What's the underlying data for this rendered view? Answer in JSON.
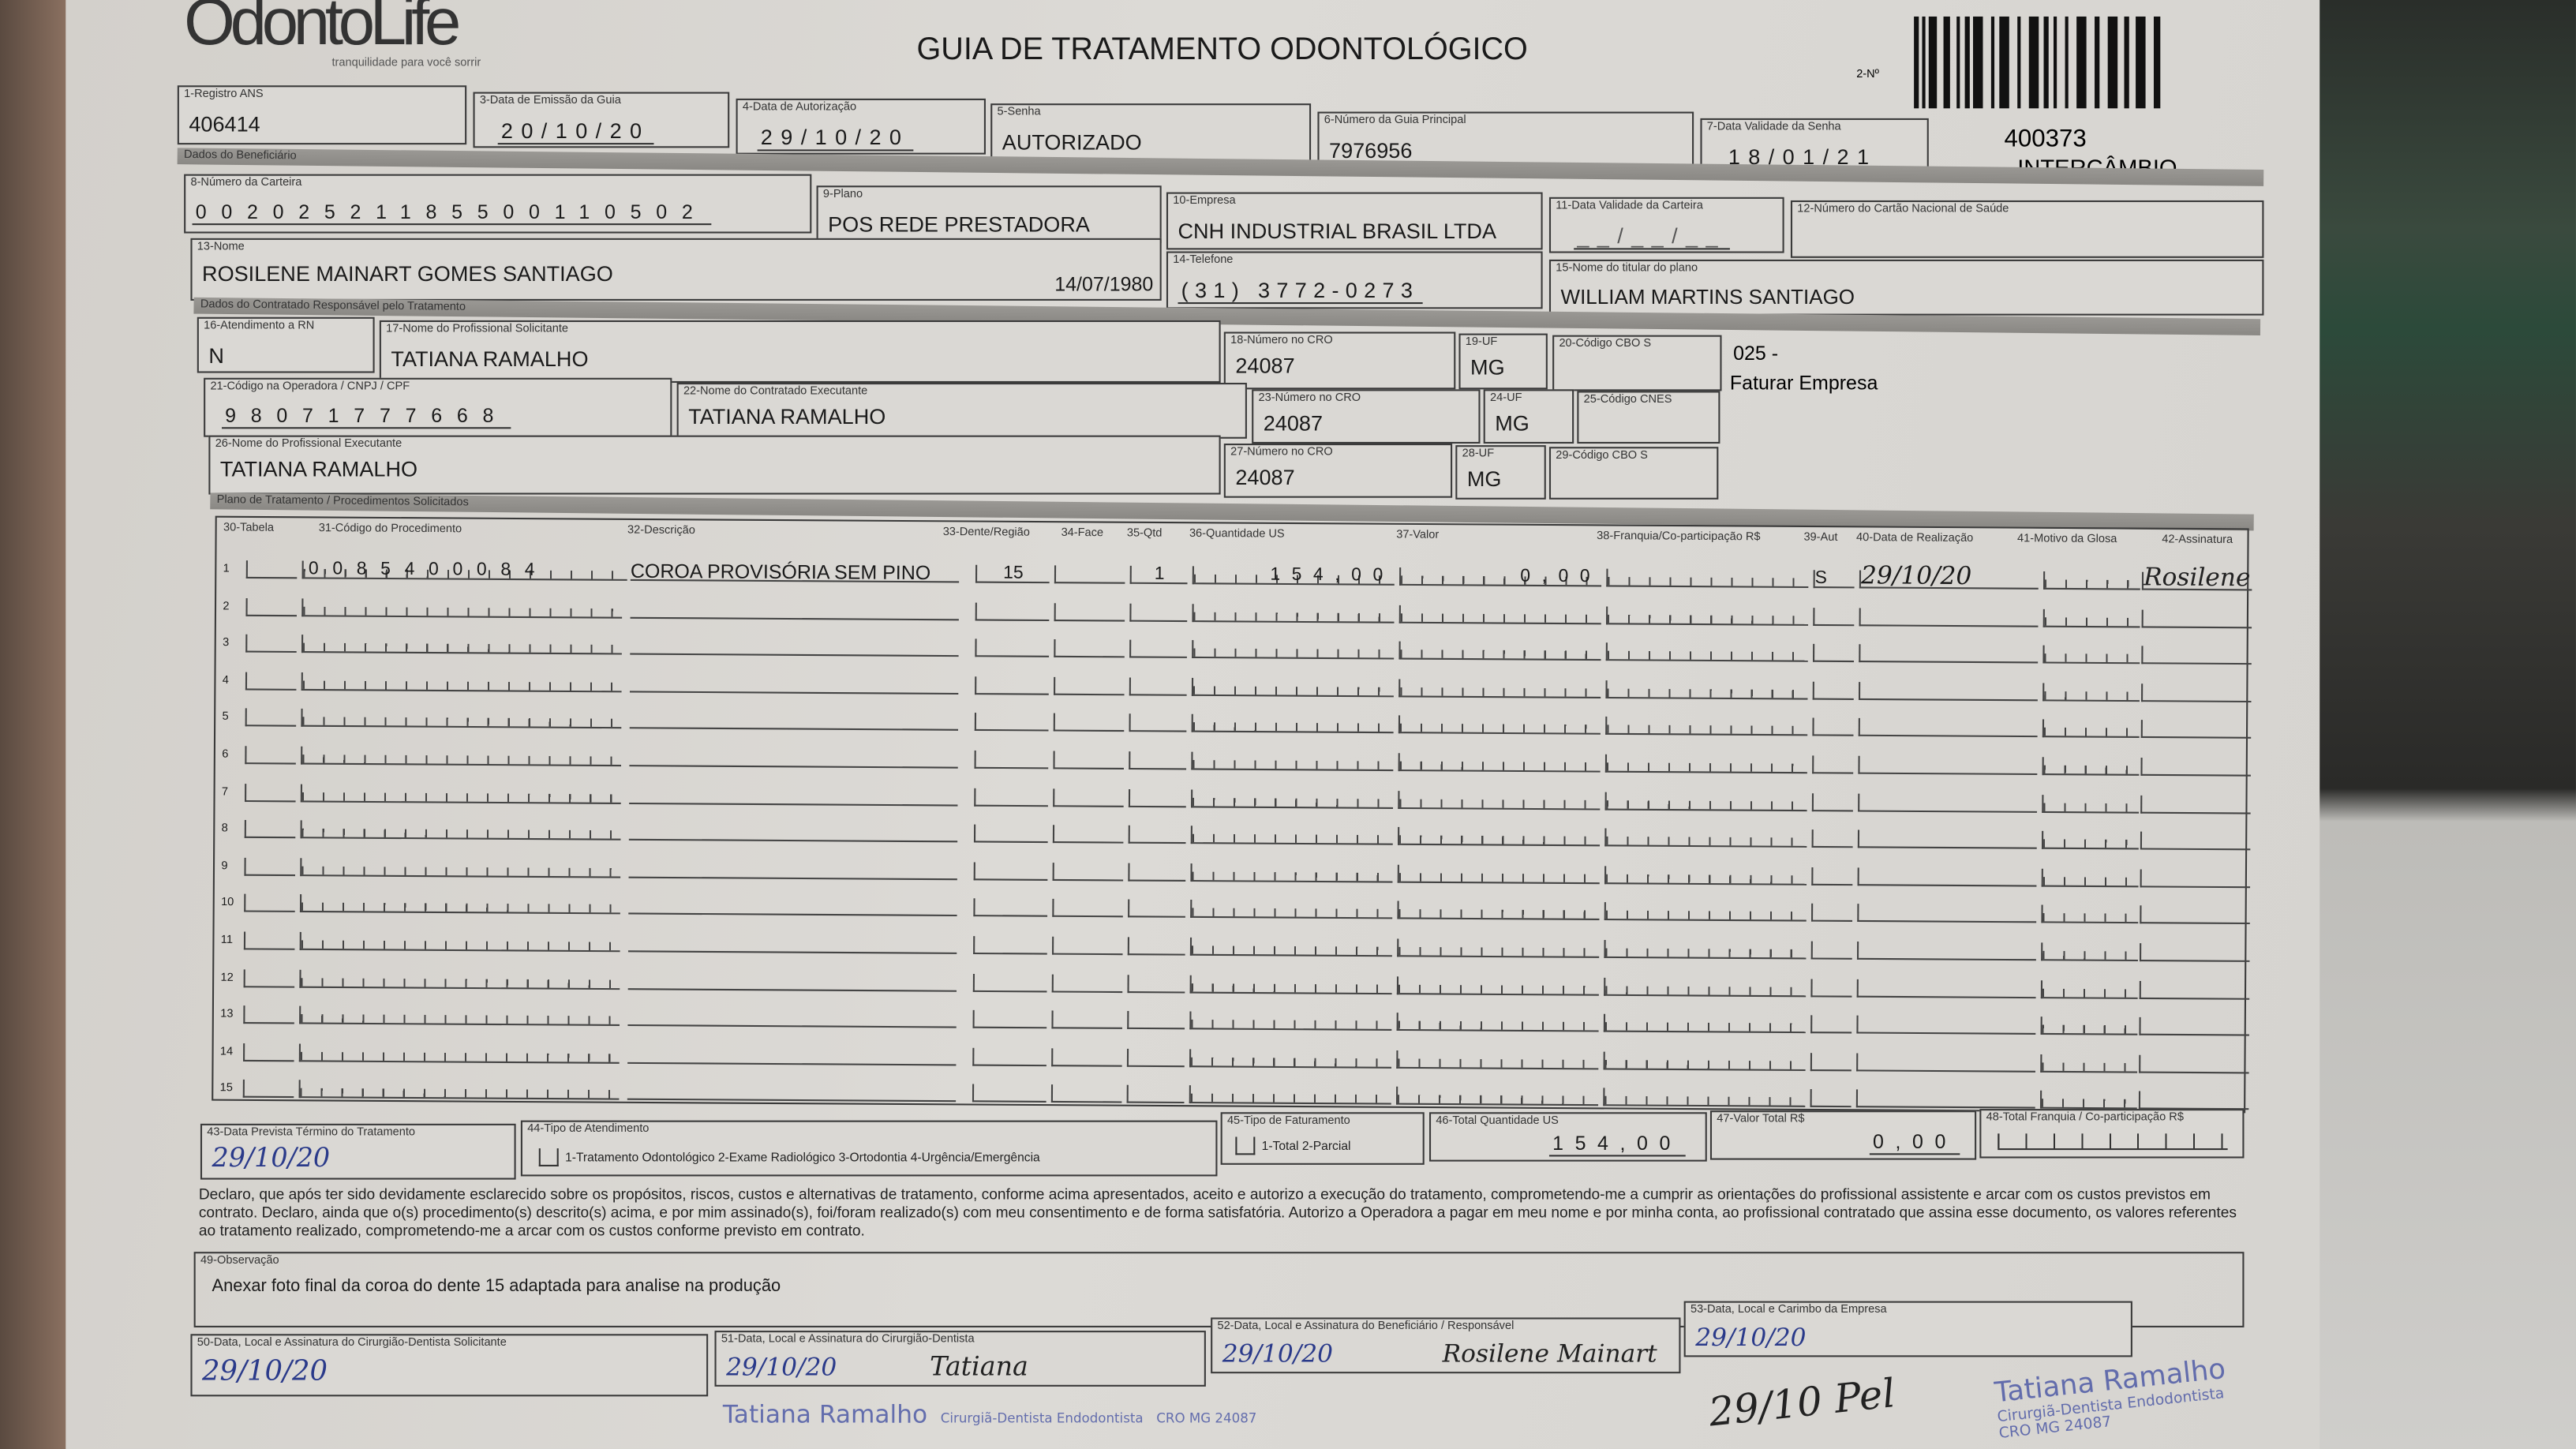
{
  "logo": {
    "name": "OdontoLife",
    "tagline": "tranquilidade para você sorrir"
  },
  "title": "GUIA DE TRATAMENTO ODONTOLÓGICO",
  "guide_number_label": "2-Nº",
  "side_code": "400373",
  "side_type": "INTERCÂMBIO",
  "header": {
    "registro_ans": {
      "label": "1-Registro ANS",
      "value": "406414"
    },
    "data_emissao": {
      "label": "3-Data de Emissão da Guia",
      "value": "20/10/20"
    },
    "data_autorizacao": {
      "label": "4-Data de Autorização",
      "value": "29/10/20"
    },
    "senha": {
      "label": "5-Senha",
      "value": "AUTORIZADO"
    },
    "guia_principal": {
      "label": "6-Número da Guia Principal",
      "value": "7976956"
    },
    "validade_senha": {
      "label": "7-Data Validade da Senha",
      "value": "18/01/21"
    }
  },
  "beneficiario": {
    "section": "Dados do Beneficiário",
    "carteira": {
      "label": "8-Número da Carteira",
      "value": "00202521185500110502"
    },
    "plano": {
      "label": "9-Plano",
      "value": "POS REDE PRESTADORA"
    },
    "empresa": {
      "label": "10-Empresa",
      "value": "CNH INDUSTRIAL BRASIL LTDA"
    },
    "validade_carteira": {
      "label": "11-Data Validade da Carteira",
      "value": "__/__/__"
    },
    "cns": {
      "label": "12-Número do Cartão Nacional de Saúde",
      "value": ""
    },
    "nome": {
      "label": "13-Nome",
      "value": "ROSILENE MAINART GOMES SANTIAGO",
      "birth": "14/07/1980"
    },
    "telefone": {
      "label": "14-Telefone",
      "value": "(31) 3772-0273"
    },
    "titular": {
      "label": "15-Nome do titular do plano",
      "value": "WILLIAM MARTINS SANTIAGO"
    }
  },
  "contratado": {
    "section": "Dados do Contratado Responsável pelo Tratamento",
    "rn": {
      "label": "16-Atendimento a RN",
      "value": "N"
    },
    "solicitante": {
      "label": "17-Nome do Profissional Solicitante",
      "value": "TATIANA RAMALHO"
    },
    "cro18": {
      "label": "18-Número no CRO",
      "value": "24087"
    },
    "uf19": {
      "label": "19-UF",
      "value": "MG"
    },
    "cbo20": {
      "label": "20-Código CBO S",
      "value": ""
    },
    "billing_note": {
      "code": "025 -",
      "text": "Faturar Empresa"
    },
    "codigo_operadora": {
      "label": "21-Código na Operadora / CNPJ / CPF",
      "value": "98071777668"
    },
    "executante_contratado": {
      "label": "22-Nome do Contratado Executante",
      "value": "TATIANA RAMALHO"
    },
    "cro23": {
      "label": "23-Número no CRO",
      "value": "24087"
    },
    "uf24": {
      "label": "24-UF",
      "value": "MG"
    },
    "cnes": {
      "label": "25-Código CNES",
      "value": ""
    },
    "executante": {
      "label": "26-Nome do Profissional Executante",
      "value": "TATIANA RAMALHO"
    },
    "cro27": {
      "label": "27-Número no CRO",
      "value": "24087"
    },
    "uf28": {
      "label": "28-UF",
      "value": "MG"
    },
    "cbo29": {
      "label": "29-Código CBO S",
      "value": ""
    }
  },
  "procedures": {
    "section": "Plano de Tratamento / Procedimentos Solicitados",
    "headers": [
      "30-Tabela",
      "31-Código do Procedimento",
      "32-Descrição",
      "33-Dente/Região",
      "34-Face",
      "35-Qtd",
      "36-Quantidade US",
      "37-Valor",
      "38-Franquia/Co-participação R$",
      "39-Aut",
      "40-Data de Realização",
      "41-Motivo da Glosa",
      "42-Assinatura"
    ],
    "rows": [
      {
        "n": "1",
        "tabela": "",
        "codigo": "0085400084",
        "descricao": "COROA PROVISÓRIA SEM PINO",
        "dente": "15",
        "face": "",
        "qtd": "1",
        "us": "154,00",
        "valor": "0,00",
        "franquia": "",
        "aut": "S",
        "data": "29/10/20",
        "glosa": "",
        "assinatura": "Rosilene"
      },
      {
        "n": "2"
      },
      {
        "n": "3"
      },
      {
        "n": "4"
      },
      {
        "n": "5"
      },
      {
        "n": "6"
      },
      {
        "n": "7"
      },
      {
        "n": "8"
      },
      {
        "n": "9"
      },
      {
        "n": "10"
      },
      {
        "n": "11"
      },
      {
        "n": "12"
      },
      {
        "n": "13"
      },
      {
        "n": "14"
      },
      {
        "n": "15"
      }
    ]
  },
  "totals": {
    "termino": {
      "label": "43-Data Prevista Término do Tratamento",
      "value": "29/10/20"
    },
    "tipo_atendimento": {
      "label": "44-Tipo de Atendimento",
      "options": "1-Tratamento Odontológico  2-Exame Radiológico  3-Ortodontia  4-Urgência/Emergência",
      "value": ""
    },
    "tipo_faturamento": {
      "label": "45-Tipo de Faturamento",
      "options": "1-Total  2-Parcial",
      "value": ""
    },
    "total_us": {
      "label": "46-Total Quantidade US",
      "value": "154,00"
    },
    "valor_total": {
      "label": "47-Valor Total R$",
      "value": "0,00"
    },
    "total_franquia": {
      "label": "48-Total Franquia / Co-participação R$",
      "value": ""
    }
  },
  "declaration": "Declaro, que após ter sido devidamente esclarecido sobre os propósitos, riscos, custos e alternativas de tratamento, conforme acima apresentados, aceito e autorizo a execução do tratamento, comprometendo-me a cumprir as orientações do profissional assistente e arcar com os custos previstos em contrato. Declaro, ainda que o(s) procedimento(s) descrito(s) acima, e por mim assinado(s), foi/foram realizado(s) com meu consentimento e de forma satisfatória. Autorizo a Operadora a pagar em meu nome e por minha conta, ao profissional contratado que assina esse documento, os valores referentes ao tratamento realizado, comprometendo-me a arcar com os custos conforme previsto em contrato.",
  "observacao": {
    "label": "49-Observação",
    "value": "Anexar foto final da coroa do dente 15  adaptada para analise na produção"
  },
  "signatures": {
    "s50": {
      "label": "50-Data, Local e Assinatura do Cirurgião-Dentista Solicitante",
      "date": "29/10/20"
    },
    "s51": {
      "label": "51-Data, Local e Assinatura do Cirurgião-Dentista",
      "date": "29/10/20",
      "sig": "Tatiana"
    },
    "s52": {
      "label": "52-Data, Local e Assinatura do Beneficiário / Responsável",
      "date": "29/10/20",
      "sig": "Rosilene Mainart"
    },
    "s53": {
      "label": "53-Data, Local e Carimbo da Empresa",
      "date": "29/10/20"
    }
  },
  "handwritten_note": "29/10 Pel",
  "stamp": {
    "name": "Tatiana Ramalho",
    "line2": "Cirurgiã-Dentista Endodontista",
    "line3": "CRO MG 24087"
  },
  "colors": {
    "paper": "#dad8d4",
    "ink": "#1a1a1a",
    "pen": "#2a3a8a"
  }
}
